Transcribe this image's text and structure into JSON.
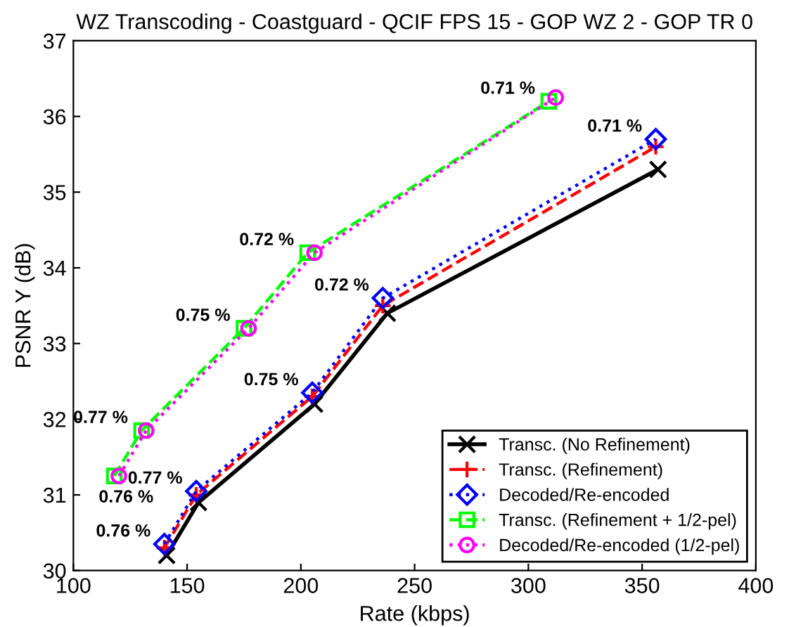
{
  "chart_data": {
    "type": "line",
    "title": "WZ Transcoding - Coastguard - QCIF FPS 15 - GOP WZ 2 - GOP TR 0",
    "xlabel": "Rate (kbps)",
    "ylabel": "PSNR Y (dB)",
    "xlim": [
      100,
      400
    ],
    "xticks": [
      100,
      150,
      200,
      250,
      300,
      350,
      400
    ],
    "ylim": [
      30,
      37
    ],
    "yticks": [
      30,
      31,
      32,
      33,
      34,
      35,
      36,
      37
    ],
    "grid": false,
    "legend": "bottom right",
    "series": [
      {
        "name": "Transc. (No Refinement)",
        "color": "#000000",
        "marker": "cross",
        "line_style": "solid",
        "x": [
          141,
          155,
          206,
          238,
          357
        ],
        "values": [
          30.2,
          30.9,
          32.2,
          33.4,
          35.3
        ]
      },
      {
        "name": "Transc. (Refinement)",
        "color": "#ff0000",
        "marker": "plus",
        "line_style": "dashed",
        "x": [
          140,
          154,
          205,
          236,
          356
        ],
        "values": [
          30.3,
          31.0,
          32.3,
          33.5,
          35.6
        ]
      },
      {
        "name": "Decoded/Re-encoded",
        "color": "#0000ff",
        "marker": "diamond",
        "line_style": "dotted",
        "x": [
          140,
          154,
          205,
          236,
          356
        ],
        "values": [
          30.35,
          31.05,
          32.35,
          33.6,
          35.7
        ]
      },
      {
        "name": "Transc. (Refinement + 1/2-pel)",
        "color": "#00ff00",
        "marker": "square",
        "line_style": "dashed",
        "x": [
          118,
          130,
          175,
          203,
          309
        ],
        "values": [
          31.25,
          31.85,
          33.2,
          34.2,
          36.2
        ]
      },
      {
        "name": "Decoded/Re-encoded (1/2-pel)",
        "color": "#ff00ff",
        "marker": "circle",
        "line_style": "dotted",
        "x": [
          120,
          132,
          177,
          206,
          312
        ],
        "values": [
          31.25,
          31.85,
          33.2,
          34.2,
          36.25
        ]
      }
    ],
    "annotations": [
      {
        "text": "0.76 %",
        "x": 140,
        "y": 30.35
      },
      {
        "text": "0.77 %",
        "x": 154,
        "y": 31.05
      },
      {
        "text": "0.75 %",
        "x": 205,
        "y": 32.35
      },
      {
        "text": "0.72 %",
        "x": 236,
        "y": 33.6
      },
      {
        "text": "0.71 %",
        "x": 356,
        "y": 35.7
      },
      {
        "text": "0.76 %",
        "x": 118,
        "y": 31.25
      },
      {
        "text": "0.77 %",
        "x": 130,
        "y": 31.85
      },
      {
        "text": "0.75 %",
        "x": 175,
        "y": 33.2
      },
      {
        "text": "0.72 %",
        "x": 203,
        "y": 34.2
      },
      {
        "text": "0.71 %",
        "x": 309,
        "y": 36.2
      }
    ]
  }
}
